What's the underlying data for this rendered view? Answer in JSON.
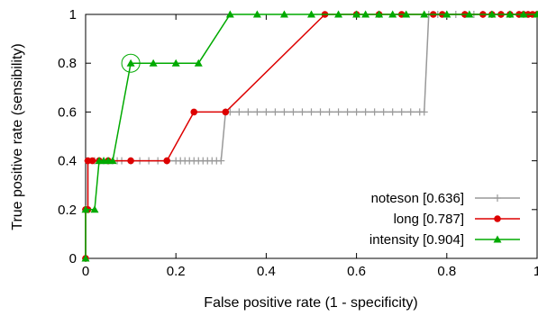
{
  "chart_data": {
    "type": "line",
    "xlabel": "False positive rate (1 - specificity)",
    "ylabel": "True positive rate (sensibility)",
    "xlim": [
      0,
      1
    ],
    "ylim": [
      0,
      1
    ],
    "xticks": [
      "0",
      "0.2",
      "0.4",
      "0.6",
      "0.8",
      "1"
    ],
    "yticks": [
      "0",
      "0.2",
      "0.4",
      "0.6",
      "0.8",
      "1"
    ],
    "legend_position": "bottom-right",
    "series": [
      {
        "name": "noteson [0.636]",
        "color": "#999999",
        "marker": "plus",
        "x": [
          0,
          0,
          0.005,
          0.005,
          0.02,
          0.03,
          0.04,
          0.05,
          0.06,
          0.07,
          0.08,
          0.1,
          0.12,
          0.14,
          0.16,
          0.18,
          0.2,
          0.21,
          0.22,
          0.23,
          0.24,
          0.25,
          0.26,
          0.27,
          0.28,
          0.29,
          0.3,
          0.31,
          0.32,
          0.34,
          0.36,
          0.38,
          0.4,
          0.42,
          0.44,
          0.46,
          0.48,
          0.5,
          0.52,
          0.54,
          0.56,
          0.58,
          0.6,
          0.62,
          0.64,
          0.66,
          0.68,
          0.7,
          0.72,
          0.74,
          0.75,
          0.76,
          0.78,
          0.8,
          0.82,
          0.84,
          0.86,
          0.88,
          0.9,
          0.92,
          0.94,
          0.96,
          0.98,
          1
        ],
        "y": [
          0,
          0.2,
          0.2,
          0.4,
          0.4,
          0.4,
          0.4,
          0.4,
          0.4,
          0.4,
          0.4,
          0.4,
          0.4,
          0.4,
          0.4,
          0.4,
          0.4,
          0.4,
          0.4,
          0.4,
          0.4,
          0.4,
          0.4,
          0.4,
          0.4,
          0.4,
          0.4,
          0.6,
          0.6,
          0.6,
          0.6,
          0.6,
          0.6,
          0.6,
          0.6,
          0.6,
          0.6,
          0.6,
          0.6,
          0.6,
          0.6,
          0.6,
          0.6,
          0.6,
          0.6,
          0.6,
          0.6,
          0.6,
          0.6,
          0.6,
          0.6,
          1,
          1,
          1,
          1,
          1,
          1,
          1,
          1,
          1,
          1,
          1,
          1,
          1
        ]
      },
      {
        "name": "long [0.787]",
        "color": "#dd0000",
        "marker": "circle",
        "x": [
          0,
          0,
          0.005,
          0.005,
          0.015,
          0.03,
          0.05,
          0.1,
          0.18,
          0.24,
          0.31,
          0.53,
          0.6,
          0.65,
          0.7,
          0.77,
          0.79,
          0.84,
          0.88,
          0.9,
          0.92,
          0.94,
          0.96,
          0.97,
          0.98,
          0.99,
          1
        ],
        "y": [
          0,
          0.2,
          0.2,
          0.4,
          0.4,
          0.4,
          0.4,
          0.4,
          0.4,
          0.6,
          0.6,
          1,
          1,
          1,
          1,
          1,
          1,
          1,
          1,
          1,
          1,
          1,
          1,
          1,
          1,
          1,
          1
        ]
      },
      {
        "name": "intensity [0.904]",
        "color": "#00aa00",
        "marker": "triangle",
        "x": [
          0,
          0,
          0.02,
          0.03,
          0.04,
          0.05,
          0.06,
          0.1,
          0.15,
          0.2,
          0.25,
          0.32,
          0.38,
          0.44,
          0.5,
          0.56,
          0.6,
          0.62,
          0.65,
          0.68,
          0.71,
          0.75,
          0.8,
          0.85,
          0.9,
          0.94,
          0.97,
          1
        ],
        "y": [
          0,
          0.2,
          0.2,
          0.4,
          0.4,
          0.4,
          0.4,
          0.8,
          0.8,
          0.8,
          0.8,
          1,
          1,
          1,
          1,
          1,
          1,
          1,
          1,
          1,
          1,
          1,
          1,
          1,
          1,
          1,
          1,
          1
        ]
      }
    ],
    "highlight": {
      "x": 0.1,
      "y": 0.8,
      "color": "#00aa00"
    }
  }
}
